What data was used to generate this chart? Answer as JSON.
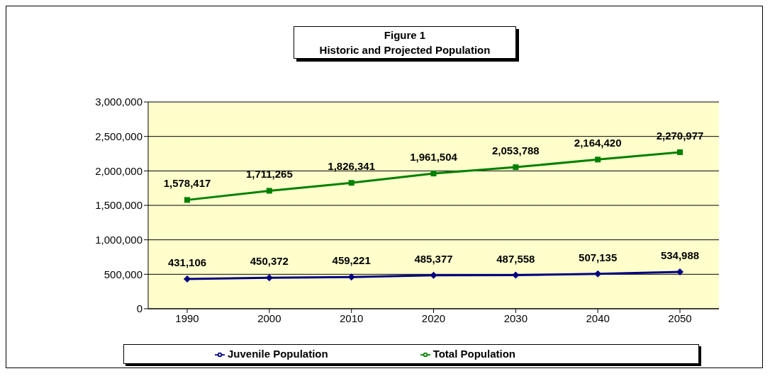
{
  "chart_data": {
    "type": "line",
    "title": "Figure 1",
    "subtitle": "Historic and Projected Population",
    "categories": [
      "1990",
      "2000",
      "2010",
      "2020",
      "2030",
      "2040",
      "2050"
    ],
    "series": [
      {
        "name": "Juvenile Population",
        "color": "#000080",
        "marker": "diamond",
        "values": [
          431106,
          450372,
          459221,
          485377,
          487558,
          507135,
          534988
        ],
        "value_labels": [
          "431,106",
          "450,372",
          "459,221",
          "485,377",
          "487,558",
          "507,135",
          "534,988"
        ]
      },
      {
        "name": "Total Population",
        "color": "#008000",
        "marker": "square",
        "values": [
          1578417,
          1711265,
          1826341,
          1961504,
          2053788,
          2164420,
          2270977
        ],
        "value_labels": [
          "1,578,417",
          "1,711,265",
          "1,826,341",
          "1,961,504",
          "2,053,788",
          "2,164,420",
          "2,270,977"
        ]
      }
    ],
    "ylim": [
      0,
      3000000
    ],
    "yticks": [
      0,
      {
        "value": 500000,
        "label": "500,000"
      },
      {
        "value": 1000000,
        "label": "1,000,000"
      },
      {
        "value": 1500000,
        "label": "1,500,000"
      },
      {
        "value": 2000000,
        "label": "2,000,000"
      },
      {
        "value": 2500000,
        "label": "2,500,000"
      },
      {
        "value": 3000000,
        "label": "3,000,000"
      }
    ],
    "grid": "y",
    "legend": "bottom"
  }
}
